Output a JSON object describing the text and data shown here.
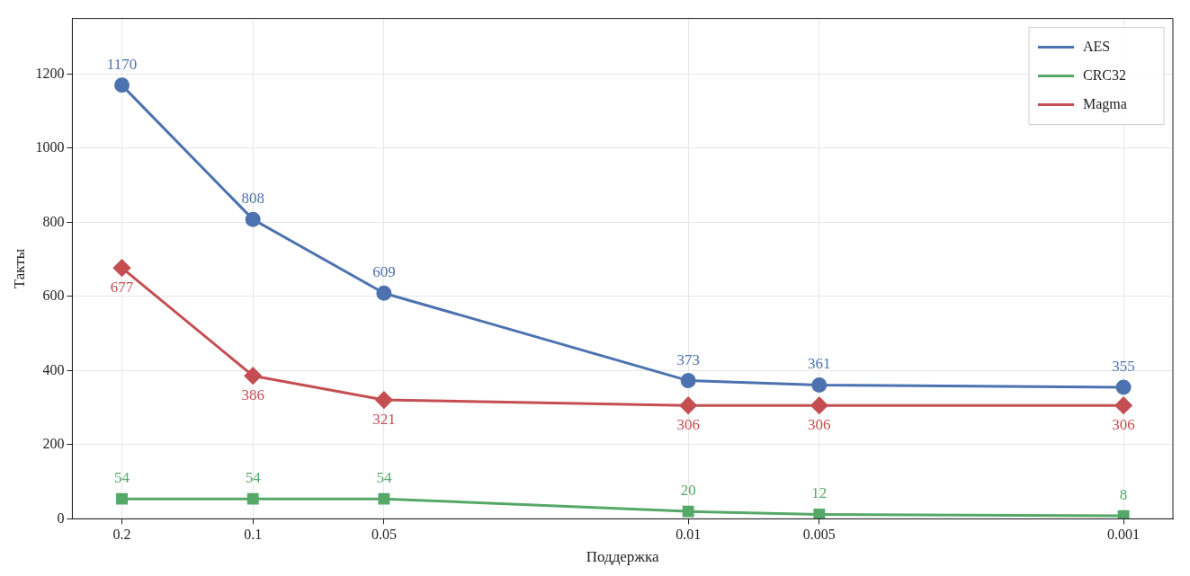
{
  "chart_data": {
    "type": "line",
    "xlabel": "Поддержка",
    "ylabel": "Такты",
    "x": [
      0.2,
      0.1,
      0.05,
      0.01,
      0.005,
      0.001
    ],
    "log": "x",
    "xlim": [
      0.26,
      0.00077
    ],
    "xticks": [
      0.2,
      0.1,
      0.05,
      0.01,
      0.005,
      0.001
    ],
    "ylim": [
      0,
      1350
    ],
    "yticks": [
      0,
      200,
      400,
      600,
      800,
      1000,
      1200
    ],
    "grid": true,
    "legend": "top right",
    "data_labels": true,
    "line_style": "solid",
    "series": [
      {
        "name": "AES",
        "color": "#4c72b0",
        "marker": "circle",
        "values": [
          1170,
          808,
          609,
          373,
          361,
          355
        ]
      },
      {
        "name": "CRC32",
        "color": "#55a868",
        "marker": "square",
        "values": [
          54,
          54,
          54,
          20,
          12,
          8
        ]
      },
      {
        "name": "Magma",
        "color": "#c44e52",
        "marker": "diamond",
        "values": [
          677,
          386,
          321,
          306,
          306,
          306
        ]
      }
    ]
  }
}
